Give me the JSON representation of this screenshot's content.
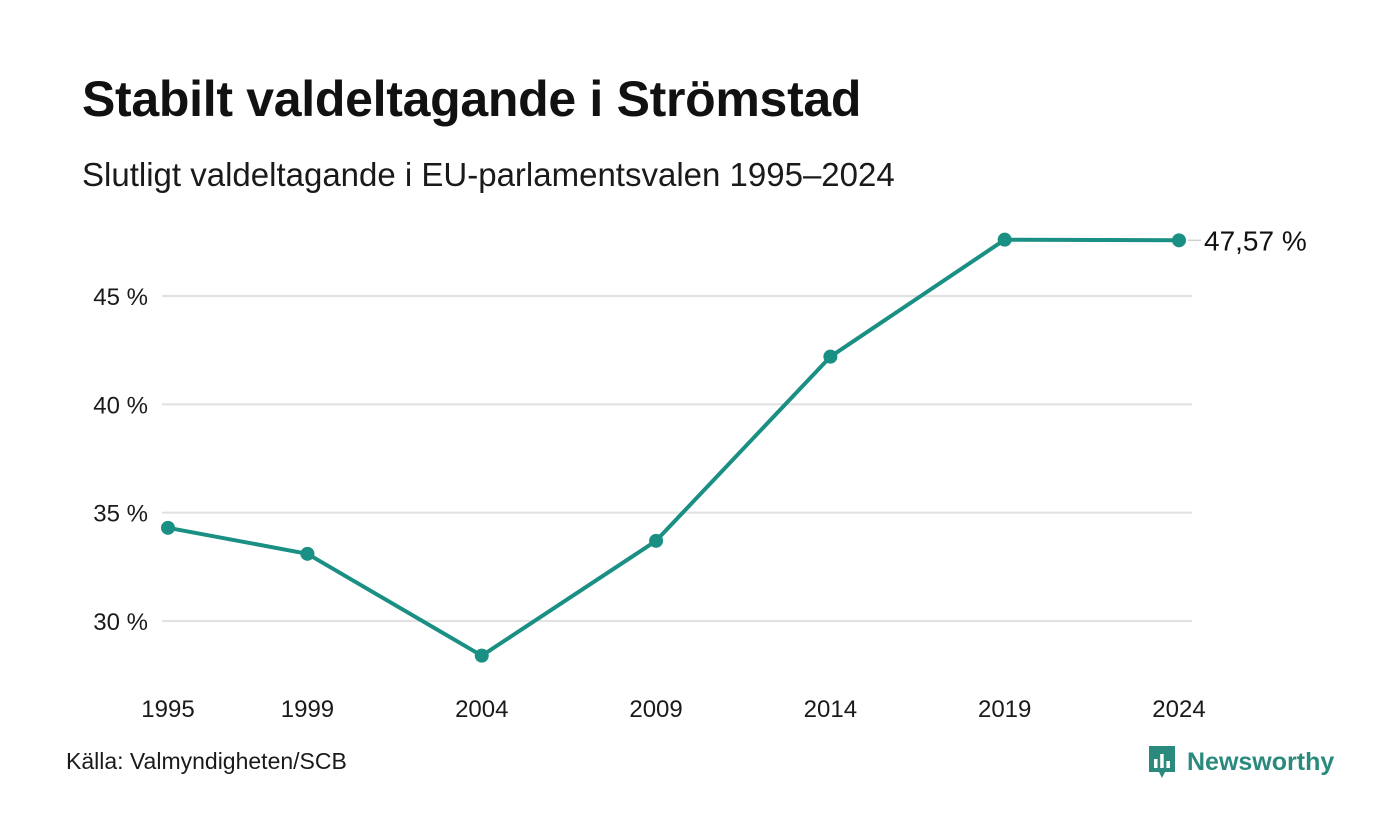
{
  "header": {
    "title": "Stabilt valdeltagande i Strömstad",
    "subtitle": "Slutligt valdeltagande i EU-parlamentsvalen 1995–2024"
  },
  "footer": {
    "source": "Källa: Valmyndigheten/SCB",
    "brand": "Newsworthy",
    "brand_icon": "bar-chart-speech-bubble-icon"
  },
  "colors": {
    "line": "#1a8f83",
    "grid": "#e2e2e2",
    "brand": "#2b8a7e"
  },
  "chart_data": {
    "type": "line",
    "x": [
      1995,
      1999,
      2004,
      2009,
      2014,
      2019,
      2024
    ],
    "categories": [
      "1995",
      "1999",
      "2004",
      "2009",
      "2014",
      "2019",
      "2024"
    ],
    "series": [
      {
        "values": [
          34.3,
          33.1,
          28.4,
          33.7,
          42.2,
          47.6,
          47.57
        ]
      }
    ],
    "ylim": [
      26.5,
      48.5
    ],
    "yticks": [
      30,
      35,
      40,
      45
    ],
    "ytick_labels": [
      "30 %",
      "35 %",
      "40 %",
      "45 %"
    ],
    "end_label": "47,57 %",
    "grid": true,
    "legend": "none",
    "xlabel": "",
    "ylabel": ""
  }
}
